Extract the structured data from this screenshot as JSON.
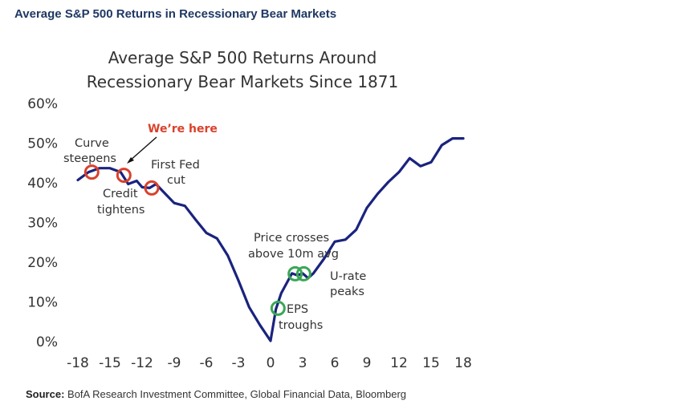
{
  "header": {
    "title": "Average S&P 500 Returns in Recessionary Bear Markets"
  },
  "source": {
    "label": "Source:",
    "text": "BofA Research Investment Committee, Global Financial Data, Bloomberg"
  },
  "colors": {
    "line": "#1a237e",
    "red_marker": "#d9412c",
    "green_marker": "#3aa655",
    "annotation_red": "#d9412c",
    "text": "#333333"
  },
  "chart_data": {
    "type": "line",
    "title": "Average S&P 500 Returns Around\nRecessionary Bear Markets Since 1871",
    "title_lines": [
      "Average S&P 500 Returns Around",
      "Recessionary Bear Markets Since 1871"
    ],
    "xlabel": "",
    "ylabel": "",
    "xlim": [
      -18,
      18
    ],
    "ylim": [
      0,
      60
    ],
    "x_ticks": [
      "-18",
      "-15",
      "-12",
      "-9",
      "-6",
      "-3",
      "0",
      "3",
      "6",
      "9",
      "12",
      "15",
      "18"
    ],
    "y_ticks": [
      "0%",
      "10%",
      "20%",
      "30%",
      "40%",
      "50%",
      "60%"
    ],
    "grid": false,
    "series": [
      {
        "x": [
          -18,
          -17,
          -16,
          -15,
          -14,
          -13.3,
          -12.5,
          -12,
          -11.3,
          -10.7,
          -10,
          -9,
          -8,
          -7,
          -6,
          -5,
          -4,
          -3,
          -2,
          -1,
          0,
          0.5,
          1,
          1.5,
          2,
          2.5,
          3,
          3.5,
          4,
          5,
          6,
          7,
          8,
          9,
          10,
          11,
          12,
          13,
          14,
          15,
          16,
          17,
          18
        ],
        "y": [
          40.5,
          42.5,
          43.5,
          43.5,
          42.5,
          39.5,
          40.3,
          38.7,
          38.5,
          39.5,
          37.5,
          34.7,
          34,
          30.5,
          27.2,
          25.8,
          21.5,
          15.2,
          8.5,
          4,
          0,
          8,
          12,
          14.5,
          17,
          16.5,
          17,
          15.8,
          17,
          20.7,
          25,
          25.5,
          28,
          33.5,
          37,
          40,
          42.5,
          46,
          44,
          45,
          49.3,
          51,
          51
        ]
      }
    ],
    "markers": [
      {
        "x": -16.7,
        "y": 42.5,
        "color": "red"
      },
      {
        "x": -13.7,
        "y": 41.7,
        "color": "red"
      },
      {
        "x": -11.1,
        "y": 38.5,
        "color": "red"
      },
      {
        "x": 0.7,
        "y": 8.2,
        "color": "green"
      },
      {
        "x": 2.3,
        "y": 16.9,
        "color": "green"
      },
      {
        "x": 3.1,
        "y": 16.9,
        "color": "green"
      }
    ],
    "annotations": [
      {
        "id": "curve-steepens",
        "lines": [
          "Curve",
          "steepens"
        ]
      },
      {
        "id": "were-here",
        "lines": [
          "We’re here"
        ]
      },
      {
        "id": "first-fed-cut",
        "lines": [
          "First Fed",
          "cut"
        ]
      },
      {
        "id": "credit-tightens",
        "lines": [
          "Credit",
          "tightens"
        ]
      },
      {
        "id": "price-crosses",
        "lines": [
          "Price crosses",
          "above 10m avg"
        ]
      },
      {
        "id": "u-rate-peaks",
        "lines": [
          "U-rate",
          "peaks"
        ]
      },
      {
        "id": "eps-troughs",
        "lines": [
          "EPS",
          "troughs"
        ]
      }
    ]
  }
}
